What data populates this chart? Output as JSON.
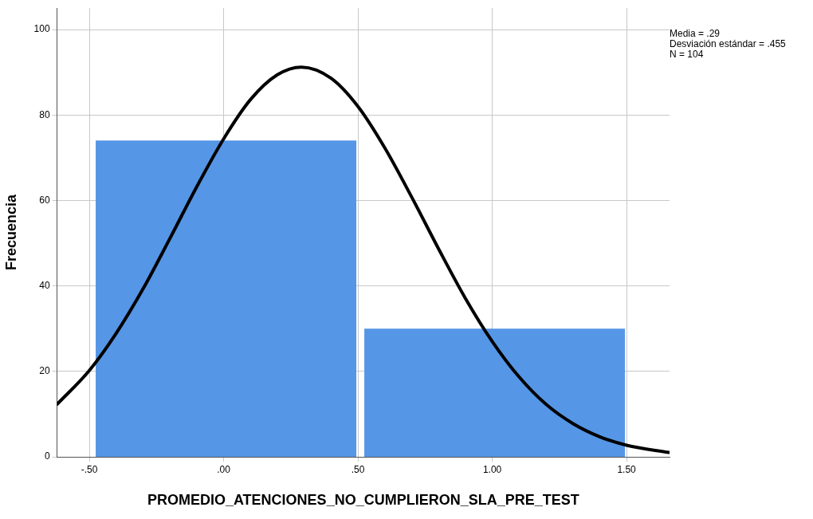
{
  "chart_data": {
    "type": "histogram",
    "xlabel": "PROMEDIO_ATENCIONES_NO_CUMPLIERON_SLA_PRE_TEST",
    "ylabel": "Frecuencia",
    "bins": [
      -0.5,
      0.5,
      1.5
    ],
    "values": [
      74,
      30
    ],
    "color": "#5596e6",
    "series": [
      {
        "type": "line",
        "color": "#000000",
        "x": [
          -0.62,
          -0.5,
          -0.4,
          -0.3,
          -0.2,
          -0.1,
          0,
          0.1,
          0.2,
          0.29,
          0.4,
          0.5,
          0.6,
          0.7,
          0.8,
          0.9,
          1.0,
          1.1,
          1.2,
          1.3,
          1.4,
          1.5,
          1.66
        ],
        "values": [
          12.3,
          20.2,
          28.9,
          39.3,
          51.1,
          63.2,
          74.4,
          83.6,
          89.4,
          91.2,
          88.6,
          82.0,
          72.3,
          60.8,
          48.7,
          37.1,
          27.0,
          18.7,
          12.3,
          7.8,
          4.7,
          2.7,
          1.0
        ]
      }
    ],
    "xlim": [
      -0.62,
      1.66
    ],
    "ylim": [
      0,
      105
    ],
    "xticks": [
      {
        "value": -0.5,
        "label": "-.50"
      },
      {
        "value": 0,
        "label": ".00"
      },
      {
        "value": 0.5,
        "label": ".50"
      },
      {
        "value": 1,
        "label": "1.00"
      },
      {
        "value": 1.5,
        "label": "1.50"
      }
    ],
    "yticks": [
      0,
      20,
      40,
      60,
      80,
      100
    ],
    "grid": true,
    "legend": false,
    "marker": "none",
    "line_style": "solid",
    "annotations": [
      "Media = .29",
      "Desviación estándar = .455",
      "N = 104"
    ]
  }
}
